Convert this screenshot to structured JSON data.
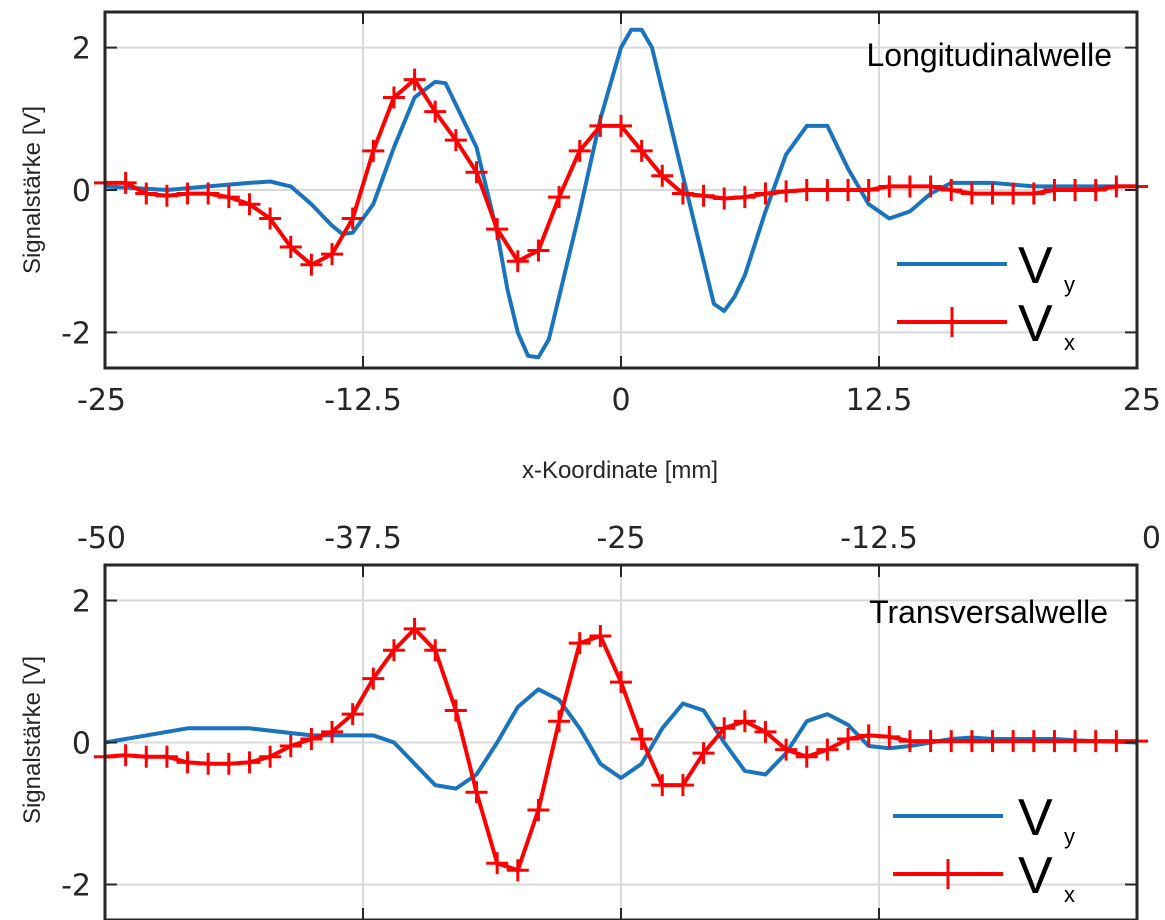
{
  "shared_xlabel": "x-Koordinate [mm]",
  "colors": {
    "vy": "#1a74bd",
    "vx": "#ff0000",
    "grid": "#d9d9d9",
    "axis": "#262626"
  },
  "chart_data": [
    {
      "type": "line",
      "title": "Longitudinalwelle",
      "ylabel": "Signalstärke [V]",
      "xlim": [
        -25,
        25
      ],
      "ylim": [
        -2.5,
        2.5
      ],
      "x_ticks": [
        -25,
        -12.5,
        0,
        12.5,
        25
      ],
      "x_tick_labels": [
        "-25",
        "-12.5",
        "0",
        "12.5",
        "25"
      ],
      "x_tick_position": "bottom",
      "y_ticks": [
        -2,
        0,
        2
      ],
      "y_tick_labels": [
        "-2",
        "0",
        "2"
      ],
      "grid": true,
      "legend_position": "bottom-right",
      "series": [
        {
          "name": "V",
          "subscript": "y",
          "marker": "none",
          "color": "#1a74bd",
          "x": [
            -25,
            -22,
            -20,
            -18,
            -17,
            -16,
            -15,
            -14,
            -13.5,
            -13,
            -12,
            -11,
            -10,
            -9,
            -8.5,
            -8,
            -7,
            -6.5,
            -6,
            -5.5,
            -5,
            -4.5,
            -4,
            -3.5,
            -3,
            -2,
            -1,
            0,
            0.5,
            1,
            1.5,
            2,
            3,
            4,
            4.5,
            5,
            5.5,
            6,
            7,
            8,
            9,
            10,
            11,
            12,
            13,
            14,
            15,
            16,
            18,
            20,
            22,
            25
          ],
          "y": [
            0.05,
            0,
            0.05,
            0.1,
            0.12,
            0.05,
            -0.2,
            -0.5,
            -0.62,
            -0.6,
            -0.2,
            0.6,
            1.3,
            1.52,
            1.5,
            1.2,
            0.6,
            0,
            -0.6,
            -1.4,
            -2.0,
            -2.33,
            -2.35,
            -2.1,
            -1.5,
            -0.3,
            1.0,
            2.0,
            2.25,
            2.25,
            2.0,
            1.4,
            0.2,
            -1.0,
            -1.6,
            -1.7,
            -1.5,
            -1.2,
            -0.3,
            0.5,
            0.9,
            0.9,
            0.3,
            -0.2,
            -0.4,
            -0.3,
            -0.05,
            0.1,
            0.1,
            0.05,
            0.05,
            0.05
          ]
        },
        {
          "name": "V",
          "subscript": "x",
          "marker": "plus",
          "color": "#ff0000",
          "x": [
            -25,
            -24,
            -23,
            -22,
            -21,
            -20,
            -19,
            -18,
            -17,
            -16,
            -15,
            -14,
            -13,
            -12,
            -11,
            -10,
            -9,
            -8,
            -7,
            -6,
            -5,
            -4,
            -3,
            -2,
            -1,
            0,
            1,
            2,
            3,
            4,
            5,
            6,
            7,
            8,
            9,
            10,
            11,
            12,
            13,
            14,
            15,
            16,
            17,
            18,
            19,
            20,
            21,
            22,
            23,
            24,
            25
          ],
          "y": [
            0.1,
            0.1,
            -0.05,
            -0.08,
            -0.05,
            -0.05,
            -0.1,
            -0.2,
            -0.4,
            -0.8,
            -1.05,
            -0.9,
            -0.4,
            0.55,
            1.3,
            1.55,
            1.1,
            0.7,
            0.25,
            -0.55,
            -1.0,
            -0.85,
            -0.1,
            0.55,
            0.9,
            0.9,
            0.55,
            0.2,
            -0.05,
            -0.08,
            -0.12,
            -0.1,
            -0.05,
            -0.02,
            0,
            0,
            0,
            0,
            0.05,
            0.05,
            0.05,
            0,
            -0.05,
            -0.05,
            -0.05,
            -0.05,
            0,
            0,
            0,
            0.05,
            0.05
          ]
        }
      ]
    },
    {
      "type": "line",
      "title": "Transversalwelle",
      "ylabel": "Signalstärke [V]",
      "xlim": [
        -50,
        0
      ],
      "ylim": [
        -2.5,
        2.5
      ],
      "x_ticks": [
        -50,
        -37.5,
        -25,
        -12.5,
        0
      ],
      "x_tick_labels": [
        "-50",
        "-37.5",
        "-25",
        "-12.5",
        "0"
      ],
      "x_tick_position": "top",
      "y_ticks": [
        -2,
        0,
        2
      ],
      "y_tick_labels": [
        "-2",
        "0",
        "2"
      ],
      "grid": true,
      "legend_position": "bottom-right",
      "series": [
        {
          "name": "V",
          "subscript": "y",
          "marker": "none",
          "color": "#1a74bd",
          "x": [
            -50,
            -46,
            -43,
            -40,
            -38,
            -37,
            -36,
            -35,
            -34,
            -33,
            -32,
            -31,
            -30,
            -29,
            -28,
            -27,
            -26,
            -25,
            -24,
            -23,
            -22,
            -21,
            -20,
            -19,
            -18,
            -17,
            -16,
            -15,
            -14,
            -13,
            -12,
            -11,
            -10,
            -9,
            -8,
            -7,
            -6,
            -5,
            -4,
            -3,
            -2,
            0
          ],
          "y": [
            0,
            0.2,
            0.2,
            0.1,
            0.1,
            0.1,
            0,
            -0.3,
            -0.6,
            -0.65,
            -0.45,
            0,
            0.5,
            0.75,
            0.6,
            0.2,
            -0.3,
            -0.5,
            -0.3,
            0.2,
            0.55,
            0.45,
            0,
            -0.4,
            -0.45,
            -0.15,
            0.3,
            0.4,
            0.25,
            -0.05,
            -0.08,
            -0.05,
            0,
            0.05,
            0.07,
            0.05,
            0.05,
            0.05,
            0.05,
            0.03,
            0.02,
            0
          ]
        },
        {
          "name": "V",
          "subscript": "x",
          "marker": "plus",
          "color": "#ff0000",
          "x": [
            -50,
            -49,
            -48,
            -47,
            -46,
            -45,
            -44,
            -43,
            -42,
            -41,
            -40,
            -39,
            -38,
            -37,
            -36,
            -35,
            -34,
            -33,
            -32,
            -31,
            -30,
            -29,
            -28,
            -27,
            -26,
            -25,
            -24,
            -23,
            -22,
            -21,
            -20,
            -19,
            -18,
            -17,
            -16,
            -15,
            -14,
            -13,
            -12,
            -11,
            -10,
            -9,
            -8,
            -7,
            -6,
            -5,
            -4,
            -3,
            -2,
            -1,
            0
          ],
          "y": [
            -0.2,
            -0.18,
            -0.2,
            -0.2,
            -0.28,
            -0.3,
            -0.3,
            -0.28,
            -0.2,
            -0.05,
            0.05,
            0.15,
            0.4,
            0.9,
            1.3,
            1.6,
            1.3,
            0.45,
            -0.7,
            -1.7,
            -1.8,
            -0.95,
            0.3,
            1.4,
            1.5,
            0.85,
            0.05,
            -0.6,
            -0.6,
            -0.15,
            0.2,
            0.3,
            0.15,
            -0.1,
            -0.2,
            -0.1,
            0.05,
            0.1,
            0.08,
            0.02,
            0.02,
            0.02,
            0.02,
            0.02,
            0.02,
            0.02,
            0.02,
            0.02,
            0.02,
            0.02,
            0.02
          ]
        }
      ]
    }
  ]
}
